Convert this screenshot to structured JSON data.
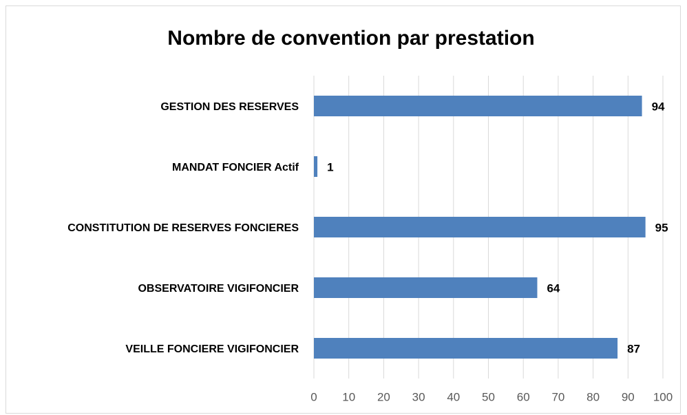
{
  "chart_data": {
    "type": "bar",
    "orientation": "horizontal",
    "title": "Nombre de convention par prestation",
    "categories": [
      "GESTION DES RESERVES",
      "MANDAT FONCIER Actif",
      "CONSTITUTION DE RESERVES FONCIERES",
      "OBSERVATOIRE VIGIFONCIER",
      "VEILLE FONCIERE VIGIFONCIER"
    ],
    "values": [
      94,
      1,
      95,
      64,
      87
    ],
    "color": "#4f81bd",
    "xlim": [
      0,
      100
    ],
    "xticks": [
      0,
      10,
      20,
      30,
      40,
      50,
      60,
      70,
      80,
      90,
      100
    ],
    "grid": true,
    "data_labels": true
  }
}
